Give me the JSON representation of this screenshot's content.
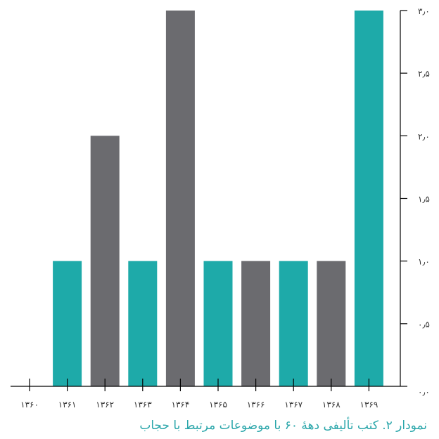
{
  "chart_data": {
    "type": "bar",
    "categories": [
      "۱۳۶۰",
      "۱۳۶۱",
      "۱۳۶۲",
      "۱۳۶۳",
      "۱۳۶۴",
      "۱۳۶۵",
      "۱۳۶۶",
      "۱۳۶۷",
      "۱۳۶۸",
      "۱۳۶۹"
    ],
    "values": [
      0,
      1,
      2,
      1,
      3,
      1,
      1,
      1,
      1,
      3
    ],
    "bar_colors": [
      "#1eaaa9",
      "#1eaaa9",
      "#6b6b6f",
      "#1eaaa9",
      "#6b6b6f",
      "#1eaaa9",
      "#6b6b6f",
      "#1eaaa9",
      "#6b6b6f",
      "#1eaaa9"
    ],
    "ylim": [
      0,
      3
    ],
    "yticks": [
      0,
      0.5,
      1,
      1.5,
      2,
      2.5,
      3
    ],
    "ytick_labels": [
      "۰٫۰",
      "۰٫۵",
      "۱٫۰",
      "۱٫۵",
      "۲٫۰",
      "۲٫۵",
      "۳٫۰"
    ],
    "y_axis_position": "right",
    "grid": false,
    "title": ""
  },
  "caption": "نمودار ۲. کتب تألیفی دههٔ ۶۰ با موضوعات مرتبط با حجاب"
}
